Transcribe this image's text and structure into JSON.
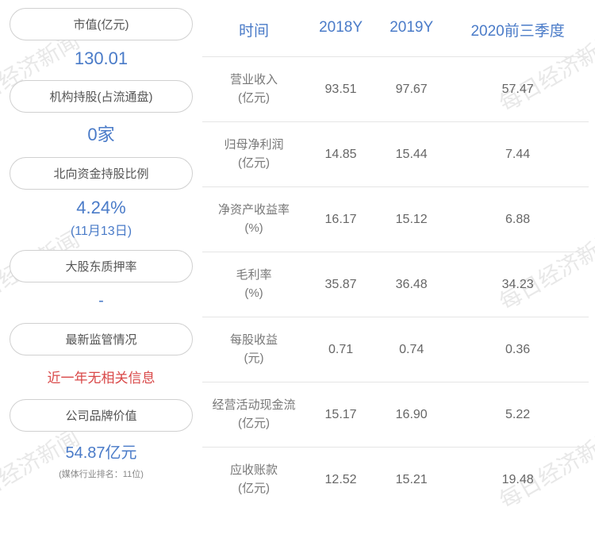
{
  "watermark_text": "每日经济新闻",
  "left": {
    "items": [
      {
        "label": "市值(亿元)",
        "value": "130.01"
      },
      {
        "label": "机构持股(占流通盘)",
        "value": "0家"
      },
      {
        "label": "北向资金持股比例",
        "value": "4.24%",
        "sub": "(11月13日)"
      },
      {
        "label": "大股东质押率",
        "value": "-"
      },
      {
        "label": "最新监管情况",
        "red": "近一年无相关信息"
      },
      {
        "label": "公司品牌价值",
        "value": "54.87亿元",
        "foot": "(媒体行业排名：11位)"
      }
    ]
  },
  "table": {
    "headers": [
      "时间",
      "2018Y",
      "2019Y",
      "2020前三季度"
    ],
    "rows": [
      {
        "label": "营业收入",
        "unit": "(亿元)",
        "cells": [
          "93.51",
          "97.67",
          "57.47"
        ]
      },
      {
        "label": "归母净利润",
        "unit": "(亿元)",
        "cells": [
          "14.85",
          "15.44",
          "7.44"
        ]
      },
      {
        "label": "净资产收益率",
        "unit": "(%)",
        "cells": [
          "16.17",
          "15.12",
          "6.88"
        ]
      },
      {
        "label": "毛利率",
        "unit": "(%)",
        "cells": [
          "35.87",
          "36.48",
          "34.23"
        ]
      },
      {
        "label": "每股收益",
        "unit": "(元)",
        "cells": [
          "0.71",
          "0.74",
          "0.36"
        ]
      },
      {
        "label": "经营活动现金流",
        "unit": "(亿元)",
        "cells": [
          "15.17",
          "16.90",
          "5.22"
        ]
      },
      {
        "label": "应收账款",
        "unit": "(亿元)",
        "cells": [
          "12.52",
          "15.21",
          "19.48"
        ]
      }
    ]
  },
  "colors": {
    "accent": "#4a7bc8",
    "alert": "#d94848",
    "border": "#e5e5e5",
    "text": "#666"
  }
}
